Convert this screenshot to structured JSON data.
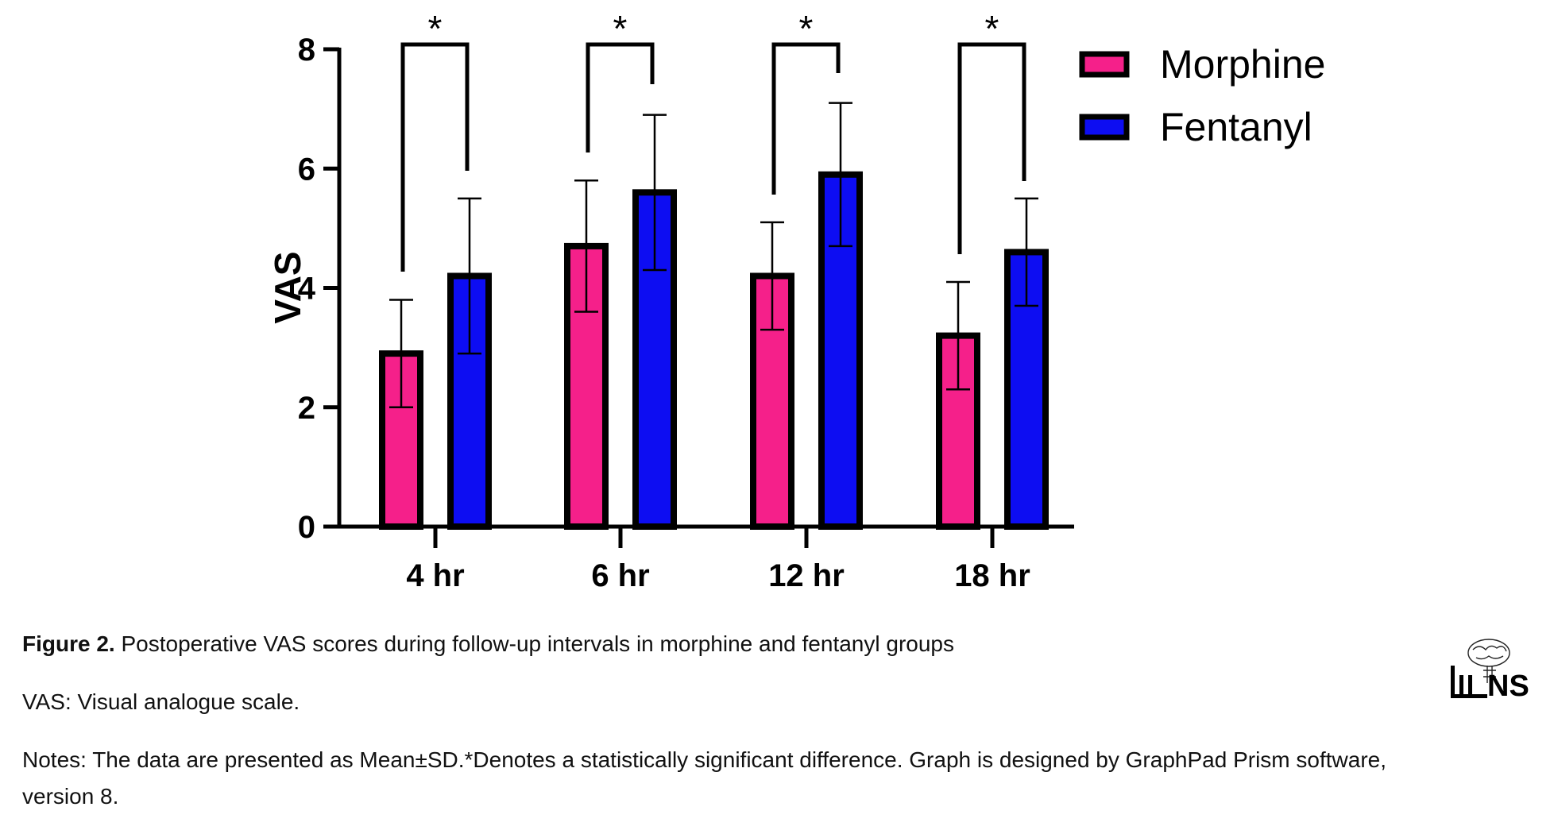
{
  "chart_data": {
    "type": "bar",
    "categories": [
      "4 hr",
      "6 hr",
      "12 hr",
      "18 hr"
    ],
    "series": [
      {
        "name": "Morphine",
        "color": "#f5208a",
        "values": [
          2.9,
          4.7,
          4.2,
          3.2
        ],
        "sd": [
          0.9,
          1.1,
          0.9,
          0.9
        ]
      },
      {
        "name": "Fentanyl",
        "color": "#0d0df2",
        "values": [
          4.2,
          5.6,
          5.9,
          4.6
        ],
        "sd": [
          1.3,
          1.3,
          1.2,
          0.9
        ]
      }
    ],
    "significance": [
      "*",
      "*",
      "*",
      "*"
    ],
    "xlabel": "",
    "ylabel": "VAS",
    "ylim": [
      0,
      8
    ],
    "yticks": [
      0,
      2,
      4,
      6,
      8
    ],
    "legend_position": "top-right",
    "grid": false
  },
  "caption": {
    "figure_label": "Figure 2.",
    "figure_text": " Postoperative VAS scores during follow-up intervals in morphine and fentanyl groups",
    "abbreviation": "VAS: Visual analogue scale.",
    "notes": "Notes: The data are presented as Mean±SD.*Denotes a statistically significant difference. Graph is designed by GraphPad Prism software, version 8."
  },
  "logo": {
    "text": "NS"
  }
}
